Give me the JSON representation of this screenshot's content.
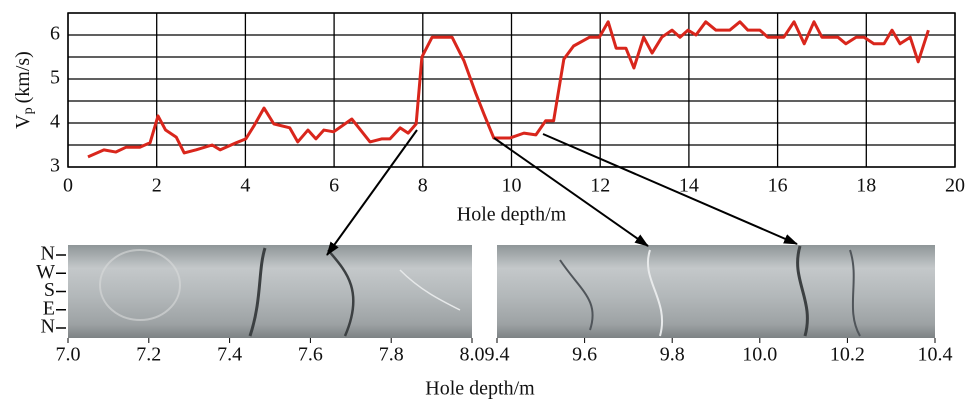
{
  "chart_data": [
    {
      "type": "line",
      "x_label": "Hole depth/m",
      "y_label": {
        "main": "V",
        "subscript": "p",
        "unit": "(km/s)"
      },
      "xlim": [
        0,
        20
      ],
      "xticks": [
        0,
        2,
        4,
        6,
        8,
        10,
        12,
        14,
        16,
        18,
        20
      ],
      "ylim": [
        3,
        6.5
      ],
      "yticks": [
        3,
        4,
        5,
        6
      ],
      "yminor": [
        3.5,
        4.5,
        5.5,
        6.5
      ],
      "grid": true,
      "series": [
        {
          "color": "#d9261c",
          "x": [
            0.45,
            0.81,
            1.08,
            1.31,
            1.62,
            1.85,
            2.03,
            2.2,
            2.44,
            2.62,
            2.89,
            3.25,
            3.43,
            3.79,
            4.01,
            4.19,
            4.42,
            4.64,
            5.0,
            5.18,
            5.41,
            5.59,
            5.77,
            5.99,
            6.4,
            6.81,
            7.08,
            7.26,
            7.49,
            7.67,
            7.85,
            7.98,
            8.21,
            8.66,
            8.93,
            9.2,
            9.38,
            9.6,
            9.97,
            10.28,
            10.55,
            10.77,
            10.95,
            11.18,
            11.4,
            11.76,
            11.98,
            12.18,
            12.36,
            12.58,
            12.76,
            12.98,
            13.17,
            13.39,
            13.62,
            13.8,
            13.98,
            14.16,
            14.38,
            14.61,
            14.92,
            15.15,
            15.33,
            15.6,
            15.78,
            16.14,
            16.37,
            16.6,
            16.82,
            17.0,
            17.36,
            17.54,
            17.77,
            17.95,
            18.17,
            18.4,
            18.58,
            18.76,
            18.99,
            19.17,
            19.4
          ],
          "values": [
            3.23,
            3.39,
            3.34,
            3.45,
            3.45,
            3.55,
            4.16,
            3.84,
            3.68,
            3.32,
            3.39,
            3.5,
            3.39,
            3.55,
            3.64,
            3.93,
            4.34,
            3.98,
            3.89,
            3.57,
            3.84,
            3.64,
            3.84,
            3.8,
            4.09,
            3.57,
            3.64,
            3.64,
            3.89,
            3.77,
            3.98,
            5.5,
            5.95,
            5.95,
            5.41,
            4.66,
            4.2,
            3.66,
            3.66,
            3.77,
            3.73,
            4.05,
            4.05,
            5.45,
            5.75,
            5.95,
            5.95,
            6.3,
            5.7,
            5.7,
            5.25,
            5.95,
            5.59,
            5.95,
            6.11,
            5.95,
            6.11,
            6.0,
            6.3,
            6.11,
            6.11,
            6.3,
            6.11,
            6.11,
            5.95,
            5.95,
            6.3,
            5.8,
            6.3,
            5.95,
            5.95,
            5.8,
            5.95,
            5.95,
            5.8,
            5.8,
            6.11,
            5.8,
            5.95,
            5.39,
            6.11
          ]
        }
      ]
    },
    {
      "type": "core-image",
      "x_label": "Hole depth/m",
      "row_labels": [
        "N",
        "W",
        "S",
        "E",
        "N"
      ],
      "panels": [
        {
          "xlim": [
            7.0,
            8.0
          ],
          "xticks": [
            {
              "value": 7.0,
              "label": "7.0"
            },
            7.2,
            7.4,
            7.6,
            7.8,
            {
              "value": 8.0,
              "label": "8.0"
            }
          ]
        },
        {
          "xlim": [
            9.4,
            10.4
          ],
          "xticks": [
            9.4,
            9.6,
            9.8,
            {
              "value": 10.0,
              "label": "10.0"
            },
            10.2,
            10.4
          ]
        }
      ]
    }
  ]
}
